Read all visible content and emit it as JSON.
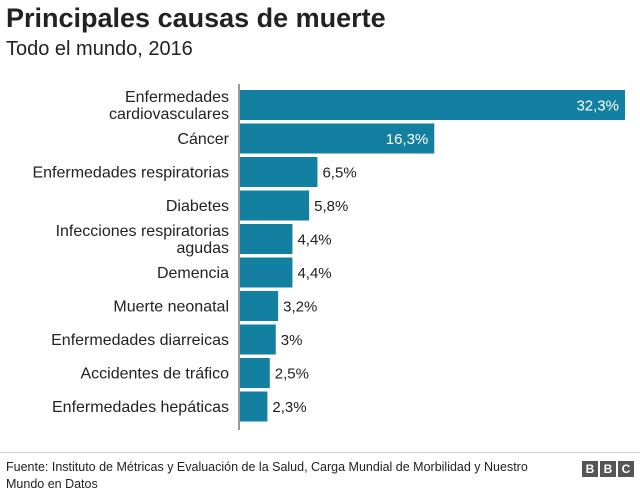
{
  "header": {
    "title": "Principales causas de muerte",
    "subtitle": "Todo el mundo, 2016"
  },
  "chart_data": {
    "type": "bar",
    "orientation": "horizontal",
    "title": "Principales causas de muerte",
    "subtitle": "Todo el mundo, 2016",
    "xlabel": "",
    "ylabel": "",
    "xlim": [
      0,
      32.3
    ],
    "grid": false,
    "bar_color": "#1380A1",
    "categories": [
      [
        "Enfermedades",
        "cardiovasculares"
      ],
      [
        "Cáncer"
      ],
      [
        "Enfermedades respiratorias"
      ],
      [
        "Diabetes"
      ],
      [
        "Infecciones respiratorias",
        "agudas"
      ],
      [
        "Demencia"
      ],
      [
        "Muerte neonatal"
      ],
      [
        "Enfermedades diarreicas"
      ],
      [
        "Accidentes de tráfico"
      ],
      [
        "Enfermedades hepáticas"
      ]
    ],
    "values": [
      32.3,
      16.3,
      6.5,
      5.8,
      4.4,
      4.4,
      3.2,
      3,
      2.5,
      2.3
    ],
    "value_labels": [
      "32,3%",
      "16,3%",
      "6,5%",
      "5,8%",
      "4,4%",
      "4,4%",
      "3,2%",
      "3%",
      "2,5%",
      "2,3%"
    ]
  },
  "footer": {
    "source": "Fuente: Instituto de Métricas y Evaluación de la Salud, Carga Mundial de Morbilidad y Nuestro Mundo en Datos",
    "logo": [
      "B",
      "B",
      "C"
    ]
  }
}
